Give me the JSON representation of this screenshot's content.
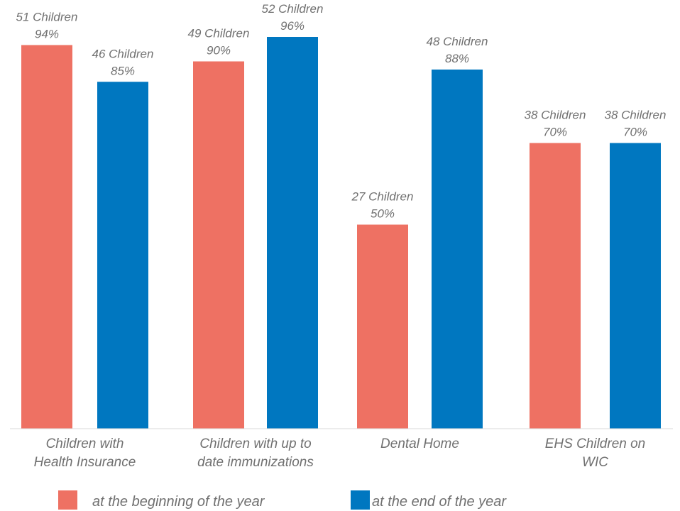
{
  "chart_data": {
    "type": "bar",
    "categories": [
      [
        "Children with",
        "Health Insurance"
      ],
      [
        "Children with up to",
        "date immunizations"
      ],
      [
        "Dental Home"
      ],
      [
        "EHS Children on",
        "WIC"
      ]
    ],
    "series": [
      {
        "name": "at the beginning of the year",
        "color": "#EE7163",
        "values": [
          94,
          90,
          50,
          70
        ],
        "labels": [
          [
            "51 Children",
            "94%"
          ],
          [
            "49 Children",
            "90%"
          ],
          [
            "27 Children",
            "50%"
          ],
          [
            "38 Children",
            "70%"
          ]
        ]
      },
      {
        "name": "at the end of the year",
        "color": "#0077C0",
        "values": [
          85,
          96,
          88,
          70
        ],
        "labels": [
          [
            "46 Children",
            "85%"
          ],
          [
            "52 Children",
            "96%"
          ],
          [
            "48 Children",
            "88%"
          ],
          [
            "38 Children",
            "70%"
          ]
        ]
      }
    ],
    "ylim": [
      0,
      100
    ],
    "grid": false,
    "legend_position": "bottom"
  }
}
